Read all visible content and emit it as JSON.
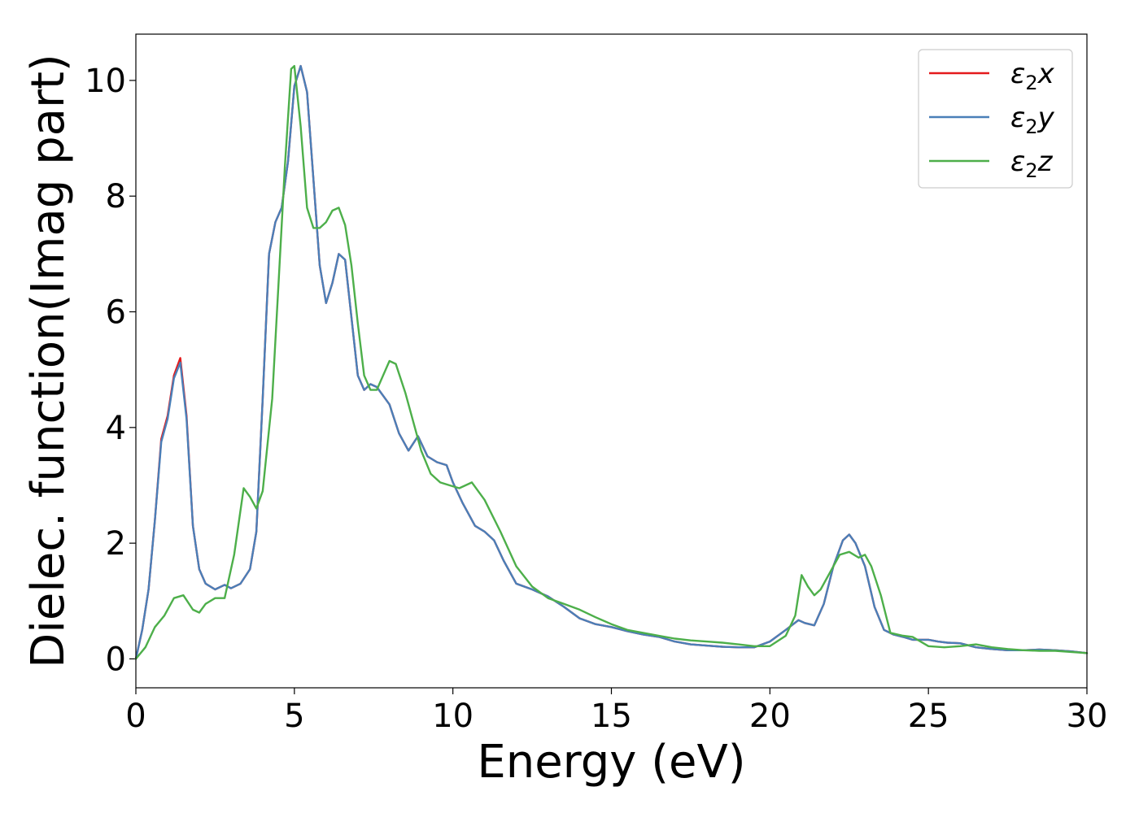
{
  "chart_data": {
    "type": "line",
    "title": "",
    "xlabel": "Energy (eV)",
    "ylabel": "Dielec. function(Imag part)",
    "xlim": [
      0,
      30
    ],
    "ylim": [
      -0.5,
      10.8
    ],
    "xticks": [
      0,
      5,
      10,
      15,
      20,
      25,
      30
    ],
    "yticks": [
      0,
      2,
      4,
      6,
      8,
      10
    ],
    "grid": false,
    "legend_position": "top-right",
    "series": [
      {
        "name": "ε2x",
        "legend_base": "ε",
        "legend_sub": "2",
        "legend_suffix": "x",
        "color": "#e41a1c",
        "x": [
          0,
          0.2,
          0.4,
          0.6,
          0.8,
          1.0,
          1.2,
          1.4,
          1.6,
          1.8,
          2.0,
          2.2,
          2.5,
          2.8,
          3.0,
          3.3,
          3.6,
          3.8,
          4.0,
          4.2,
          4.4,
          4.6,
          4.8,
          5.0,
          5.2,
          5.4,
          5.6,
          5.8,
          6.0,
          6.2,
          6.4,
          6.6,
          6.8,
          7.0,
          7.2,
          7.4,
          7.6,
          7.8,
          8.0,
          8.3,
          8.6,
          8.9,
          9.2,
          9.5,
          9.8,
          10.0,
          10.3,
          10.7,
          11.0,
          11.3,
          11.6,
          12.0,
          12.5,
          13.0,
          13.5,
          14.0,
          14.5,
          15.0,
          15.5,
          16.0,
          16.5,
          17.0,
          17.5,
          18.0,
          18.5,
          19.0,
          19.5,
          20.0,
          20.5,
          20.9,
          21.1,
          21.4,
          21.7,
          22.0,
          22.3,
          22.5,
          22.7,
          23.0,
          23.3,
          23.6,
          23.9,
          24.2,
          24.5,
          25.0,
          25.3,
          25.6,
          26.0,
          26.5,
          27.0,
          27.5,
          28.0,
          28.5,
          29.0,
          29.5,
          30.0
        ],
        "values": [
          0.0,
          0.5,
          1.2,
          2.4,
          3.8,
          4.2,
          4.9,
          5.2,
          4.2,
          2.3,
          1.55,
          1.3,
          1.2,
          1.28,
          1.22,
          1.3,
          1.55,
          2.2,
          4.5,
          7.0,
          7.55,
          7.8,
          8.6,
          9.9,
          10.25,
          9.8,
          8.3,
          6.8,
          6.15,
          6.5,
          7.0,
          6.9,
          5.9,
          4.9,
          4.65,
          4.75,
          4.7,
          4.55,
          4.4,
          3.9,
          3.6,
          3.85,
          3.5,
          3.4,
          3.35,
          3.05,
          2.7,
          2.3,
          2.2,
          2.05,
          1.7,
          1.3,
          1.2,
          1.08,
          0.9,
          0.7,
          0.6,
          0.55,
          0.48,
          0.42,
          0.38,
          0.3,
          0.25,
          0.23,
          0.21,
          0.2,
          0.2,
          0.3,
          0.5,
          0.67,
          0.62,
          0.58,
          0.95,
          1.6,
          2.05,
          2.15,
          2.0,
          1.6,
          0.9,
          0.5,
          0.42,
          0.38,
          0.33,
          0.33,
          0.3,
          0.28,
          0.27,
          0.2,
          0.17,
          0.15,
          0.15,
          0.16,
          0.15,
          0.13,
          0.1
        ]
      },
      {
        "name": "ε2y",
        "legend_base": "ε",
        "legend_sub": "2",
        "legend_suffix": "y",
        "color": "#4a7fb8",
        "x": [
          0,
          0.2,
          0.4,
          0.6,
          0.8,
          1.0,
          1.2,
          1.4,
          1.6,
          1.8,
          2.0,
          2.2,
          2.5,
          2.8,
          3.0,
          3.3,
          3.6,
          3.8,
          4.0,
          4.2,
          4.4,
          4.6,
          4.8,
          5.0,
          5.2,
          5.4,
          5.6,
          5.8,
          6.0,
          6.2,
          6.4,
          6.6,
          6.8,
          7.0,
          7.2,
          7.4,
          7.6,
          7.8,
          8.0,
          8.3,
          8.6,
          8.9,
          9.2,
          9.5,
          9.8,
          10.0,
          10.3,
          10.7,
          11.0,
          11.3,
          11.6,
          12.0,
          12.5,
          13.0,
          13.5,
          14.0,
          14.5,
          15.0,
          15.5,
          16.0,
          16.5,
          17.0,
          17.5,
          18.0,
          18.5,
          19.0,
          19.5,
          20.0,
          20.5,
          20.9,
          21.1,
          21.4,
          21.7,
          22.0,
          22.3,
          22.5,
          22.7,
          23.0,
          23.3,
          23.6,
          23.9,
          24.2,
          24.5,
          25.0,
          25.3,
          25.6,
          26.0,
          26.5,
          27.0,
          27.5,
          28.0,
          28.5,
          29.0,
          29.5,
          30.0
        ],
        "values": [
          0.0,
          0.5,
          1.2,
          2.4,
          3.75,
          4.15,
          4.85,
          5.12,
          4.15,
          2.3,
          1.55,
          1.3,
          1.2,
          1.28,
          1.22,
          1.3,
          1.55,
          2.2,
          4.5,
          7.0,
          7.55,
          7.8,
          8.6,
          9.9,
          10.25,
          9.8,
          8.3,
          6.8,
          6.15,
          6.5,
          7.0,
          6.9,
          5.9,
          4.9,
          4.65,
          4.75,
          4.7,
          4.55,
          4.4,
          3.9,
          3.6,
          3.85,
          3.5,
          3.4,
          3.35,
          3.05,
          2.7,
          2.3,
          2.2,
          2.05,
          1.7,
          1.3,
          1.2,
          1.08,
          0.9,
          0.7,
          0.6,
          0.55,
          0.48,
          0.42,
          0.38,
          0.3,
          0.25,
          0.23,
          0.21,
          0.2,
          0.2,
          0.3,
          0.5,
          0.67,
          0.62,
          0.58,
          0.95,
          1.6,
          2.05,
          2.15,
          2.0,
          1.6,
          0.9,
          0.5,
          0.42,
          0.38,
          0.33,
          0.33,
          0.3,
          0.28,
          0.27,
          0.2,
          0.17,
          0.15,
          0.15,
          0.16,
          0.15,
          0.13,
          0.1
        ]
      },
      {
        "name": "ε2z",
        "legend_base": "ε",
        "legend_sub": "2",
        "legend_suffix": "z",
        "color": "#4daf4a",
        "x": [
          0,
          0.3,
          0.6,
          0.9,
          1.2,
          1.5,
          1.8,
          2.0,
          2.2,
          2.5,
          2.8,
          3.1,
          3.4,
          3.6,
          3.8,
          4.0,
          4.3,
          4.5,
          4.7,
          4.9,
          5.0,
          5.2,
          5.4,
          5.6,
          5.8,
          6.0,
          6.2,
          6.4,
          6.6,
          6.8,
          7.0,
          7.2,
          7.4,
          7.6,
          7.8,
          8.0,
          8.2,
          8.5,
          8.8,
          9.0,
          9.3,
          9.6,
          9.9,
          10.2,
          10.6,
          11.0,
          11.5,
          12.0,
          12.5,
          13.0,
          13.5,
          14.0,
          14.5,
          15.0,
          15.5,
          16.0,
          16.5,
          17.0,
          17.5,
          18.0,
          18.5,
          19.0,
          19.5,
          20.0,
          20.5,
          20.8,
          21.0,
          21.2,
          21.4,
          21.6,
          21.9,
          22.2,
          22.5,
          22.8,
          23.0,
          23.2,
          23.5,
          23.8,
          24.2,
          24.5,
          25.0,
          25.5,
          26.0,
          26.5,
          27.0,
          27.5,
          28.0,
          28.5,
          29.0,
          29.5,
          30.0
        ],
        "values": [
          0.0,
          0.2,
          0.55,
          0.75,
          1.05,
          1.1,
          0.85,
          0.8,
          0.95,
          1.05,
          1.05,
          1.8,
          2.95,
          2.8,
          2.6,
          2.9,
          4.5,
          6.5,
          8.5,
          10.2,
          10.25,
          9.2,
          7.8,
          7.45,
          7.45,
          7.55,
          7.75,
          7.8,
          7.5,
          6.8,
          5.8,
          4.9,
          4.65,
          4.65,
          4.9,
          5.15,
          5.1,
          4.6,
          4.0,
          3.6,
          3.2,
          3.05,
          3.0,
          2.95,
          3.05,
          2.75,
          2.2,
          1.6,
          1.25,
          1.05,
          0.95,
          0.85,
          0.72,
          0.6,
          0.5,
          0.45,
          0.4,
          0.35,
          0.32,
          0.3,
          0.28,
          0.25,
          0.22,
          0.22,
          0.4,
          0.75,
          1.45,
          1.25,
          1.1,
          1.2,
          1.5,
          1.8,
          1.85,
          1.75,
          1.8,
          1.6,
          1.1,
          0.45,
          0.4,
          0.38,
          0.22,
          0.2,
          0.22,
          0.25,
          0.2,
          0.17,
          0.15,
          0.14,
          0.14,
          0.12,
          0.1
        ]
      }
    ]
  }
}
